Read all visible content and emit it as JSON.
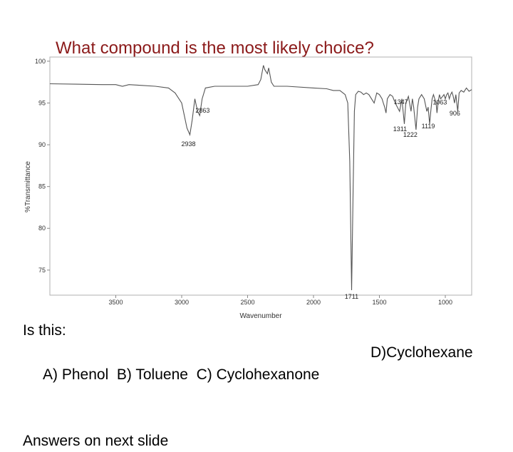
{
  "slide": {
    "title": "What compound is the most likely choice?",
    "question_line": "Is this:",
    "options_line": " A) Phenol  B) Toluene  C) Cyclohexanone",
    "option_d": "D)Cyclohexane",
    "footer_line": "Answers on next slide"
  },
  "colors": {
    "title": "#8b1a1a",
    "trace": "#555555",
    "axis": "#888888",
    "plot_border": "#b0b0b0"
  },
  "chart_data": {
    "type": "line",
    "xlabel": "Wavenumber",
    "ylabel": "%Transmittance",
    "xlim": [
      4000,
      800
    ],
    "ylim": [
      72,
      100.5
    ],
    "x_reversed": true,
    "x_ticks": [
      3500,
      3000,
      2500,
      2000,
      1500,
      1000
    ],
    "y_ticks": [
      75,
      80,
      85,
      90,
      95,
      100
    ],
    "grid": false,
    "series": [
      {
        "x": [
          4000,
          3800,
          3600,
          3500,
          3450,
          3400,
          3300,
          3200,
          3100,
          3050,
          3000,
          2980,
          2960,
          2938,
          2920,
          2900,
          2880,
          2863,
          2845,
          2820,
          2750,
          2650,
          2500,
          2420,
          2400,
          2380,
          2370,
          2350,
          2340,
          2320,
          2300,
          2200,
          2000,
          1900,
          1850,
          1800,
          1760,
          1740,
          1725,
          1711,
          1700,
          1690,
          1680,
          1660,
          1640,
          1620,
          1600,
          1580,
          1560,
          1540,
          1520,
          1500,
          1480,
          1470,
          1460,
          1450,
          1440,
          1420,
          1400,
          1380,
          1347,
          1330,
          1320,
          1311,
          1300,
          1280,
          1260,
          1250,
          1240,
          1222,
          1210,
          1200,
          1180,
          1160,
          1140,
          1130,
          1119,
          1110,
          1100,
          1090,
          1080,
          1070,
          1063,
          1055,
          1045,
          1035,
          1020,
          1010,
          1000,
          990,
          980,
          970,
          960,
          950,
          940,
          930,
          920,
          906,
          895,
          880,
          860,
          840,
          820,
          800
        ],
        "y": [
          97.3,
          97.25,
          97.2,
          97.2,
          97.0,
          97.2,
          97.1,
          97.0,
          96.8,
          96.2,
          95.0,
          93.5,
          92.0,
          91.2,
          93.0,
          95.5,
          94.0,
          93.5,
          95.5,
          96.8,
          97.0,
          97.0,
          97.0,
          97.2,
          97.8,
          99.5,
          99.0,
          98.5,
          99.2,
          97.5,
          97.0,
          97.0,
          96.8,
          96.7,
          96.5,
          96.5,
          96.0,
          95.0,
          88.0,
          72.6,
          84.0,
          94.0,
          96.0,
          96.4,
          96.3,
          96.0,
          96.2,
          96.0,
          95.5,
          95.0,
          96.2,
          96.0,
          95.5,
          95.0,
          94.5,
          93.8,
          95.5,
          96.0,
          95.8,
          95.0,
          94.0,
          95.5,
          94.0,
          92.5,
          95.0,
          95.8,
          94.0,
          95.5,
          94.5,
          91.8,
          94.5,
          95.5,
          96.0,
          95.5,
          94.0,
          94.5,
          92.5,
          94.0,
          95.5,
          96.0,
          95.5,
          95.0,
          93.8,
          95.0,
          96.0,
          95.5,
          95.8,
          96.0,
          95.5,
          96.0,
          96.2,
          95.5,
          96.0,
          96.3,
          95.8,
          95.0,
          96.0,
          94.0,
          96.2,
          96.5,
          96.3,
          96.8,
          96.4,
          96.6
        ]
      }
    ],
    "annotations": [
      {
        "label": "2938",
        "x": 2938,
        "y": 91.2
      },
      {
        "label": "2863",
        "x": 2863,
        "y": 93.5
      },
      {
        "label": "1711",
        "x": 1711,
        "y": 72.6
      },
      {
        "label": "1347",
        "x": 1347,
        "y": 94.0
      },
      {
        "label": "1311",
        "x": 1311,
        "y": 92.5
      },
      {
        "label": "1222",
        "x": 1222,
        "y": 91.8
      },
      {
        "label": "1119",
        "x": 1119,
        "y": 92.5
      },
      {
        "label": "1063",
        "x": 1063,
        "y": 93.8
      },
      {
        "label": "906",
        "x": 906,
        "y": 94.0
      }
    ]
  }
}
